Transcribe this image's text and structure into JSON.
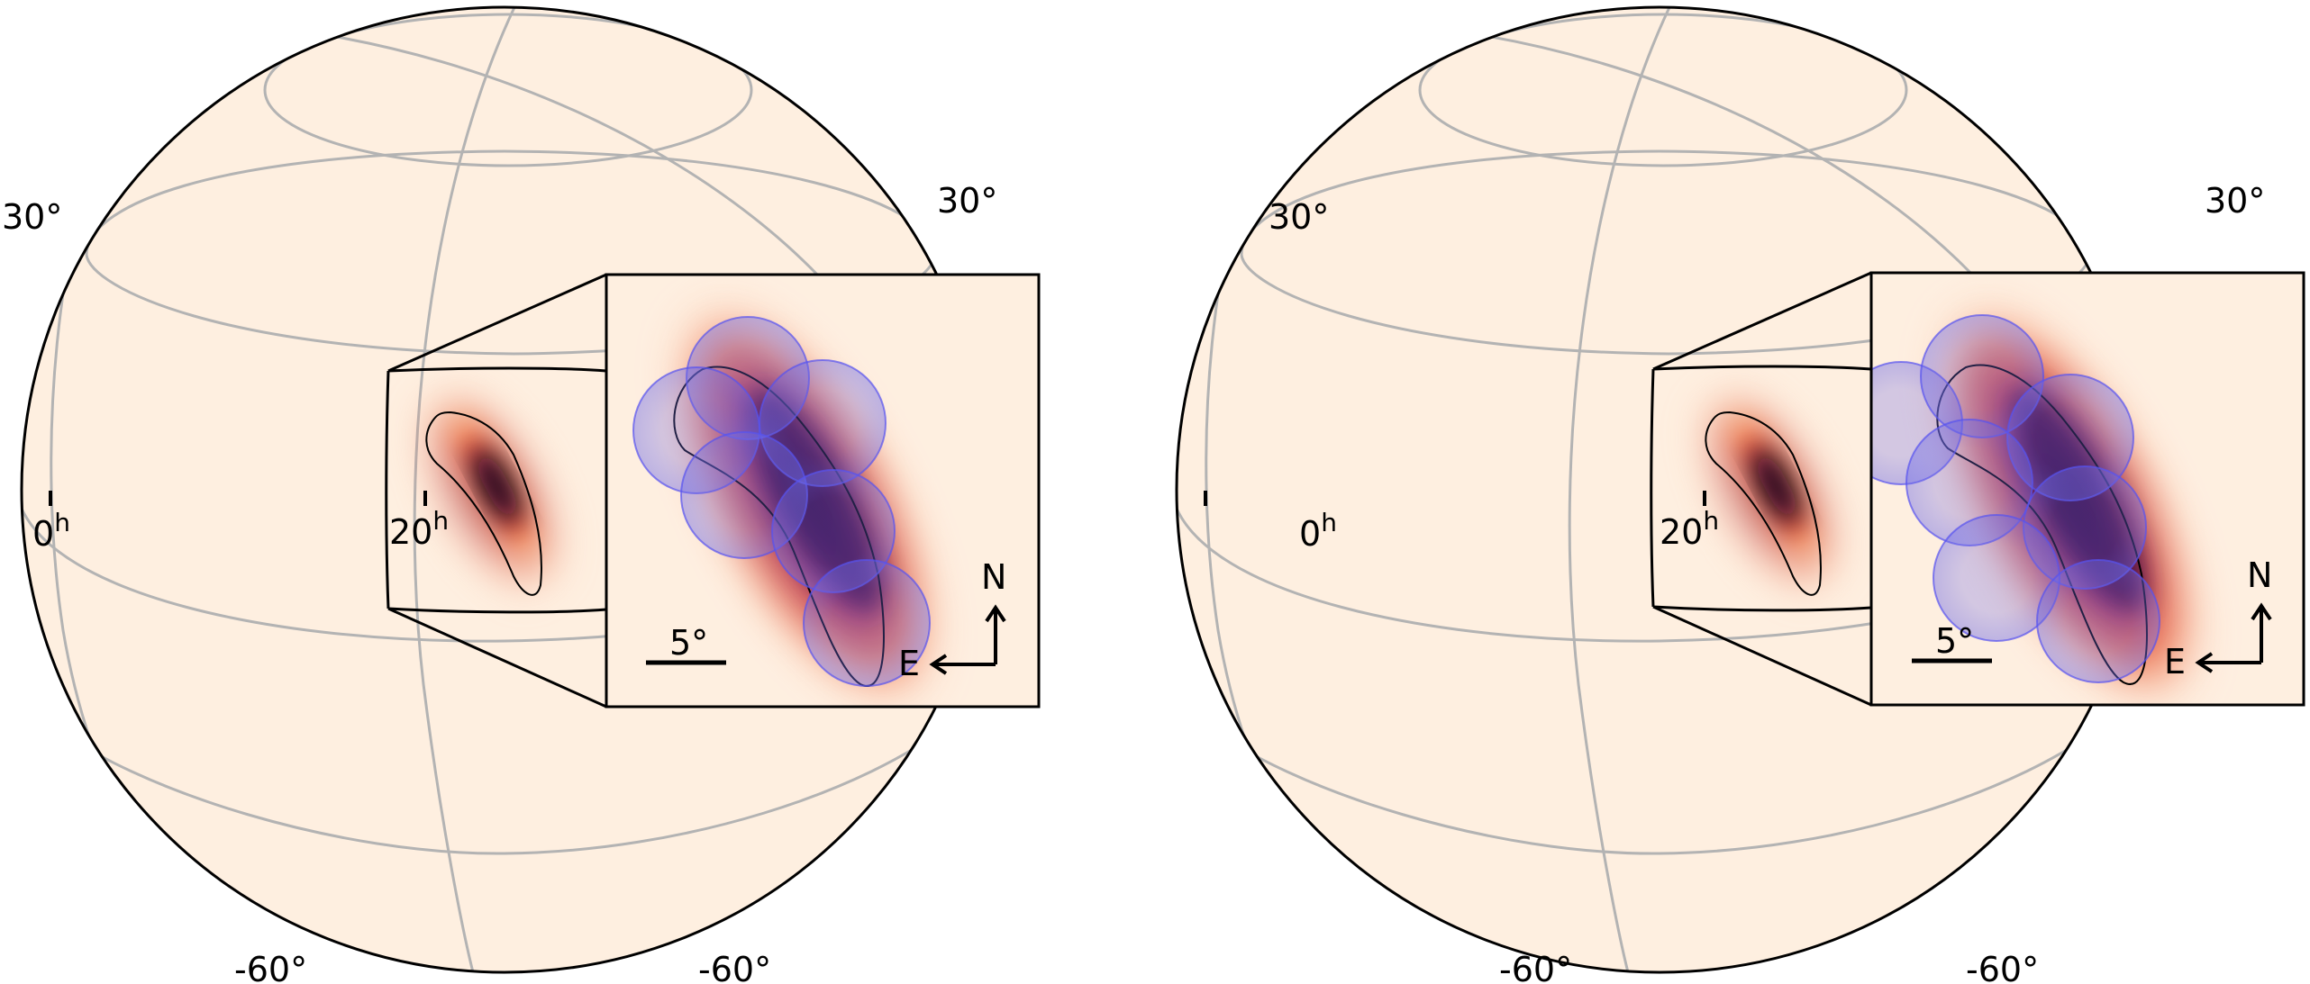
{
  "colors": {
    "sphere_fill": "#feefe0",
    "grid": "#b3b3b3",
    "outline": "#000000",
    "circle_fill": "#6e6ae6",
    "circle_stroke": "#5752f0"
  },
  "panels": [
    {
      "name": "left",
      "labels": {
        "lat_upper_left": "30°",
        "lat_upper_right": "30°",
        "lat_lower_left": "-60°",
        "lat_lower_right": "-60°",
        "ra_0": "0",
        "ra_0_sup": "h",
        "ra_20": "20",
        "ra_20_sup": "h"
      },
      "inset": {
        "scale_label": "5°",
        "north": "N",
        "east": "E"
      }
    },
    {
      "name": "right",
      "labels": {
        "lat_upper_left": "30°",
        "lat_upper_right": "30°",
        "lat_lower_left": "-60°",
        "lat_lower_right": "-60°",
        "ra_0": "0",
        "ra_0_sup": "h",
        "ra_20": "20",
        "ra_20_sup": "h"
      },
      "inset": {
        "scale_label": "5°",
        "north": "N",
        "east": "E"
      }
    }
  ]
}
